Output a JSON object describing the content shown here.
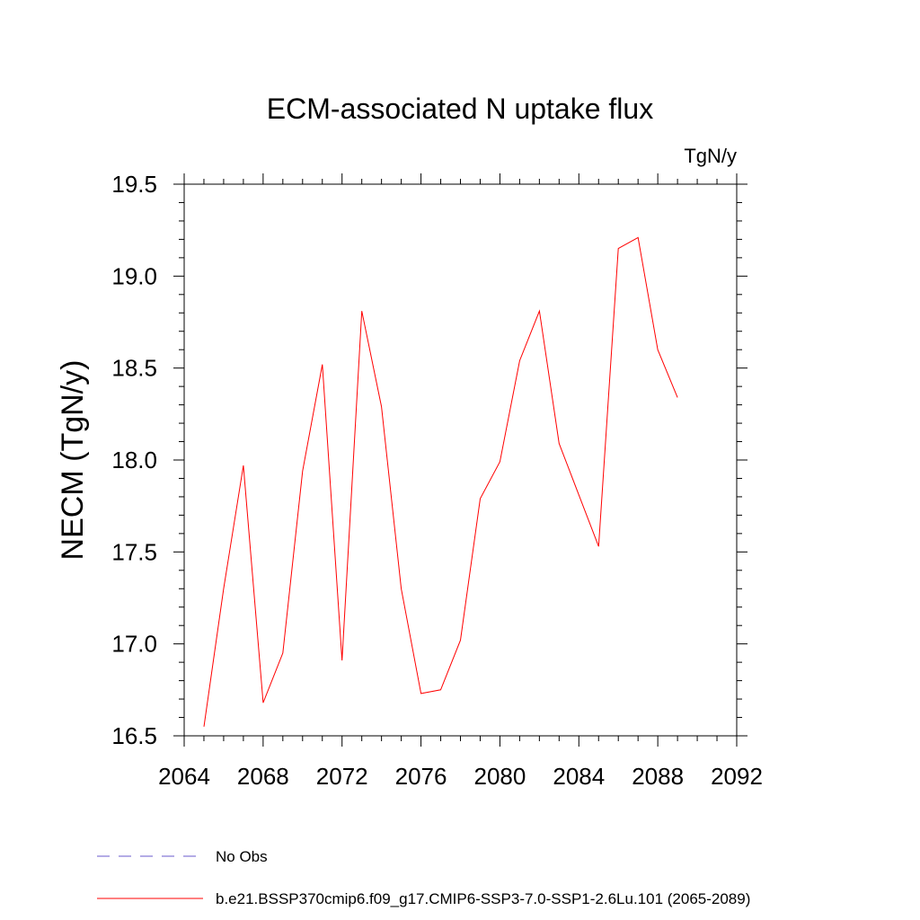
{
  "chart_data": {
    "type": "line",
    "title": "ECM-associated N uptake flux",
    "units": "TgN/y",
    "ylabel": "NECM  (TgN/y)",
    "xlabel": "",
    "xlim": [
      2064,
      2092
    ],
    "ylim": [
      16.5,
      19.5
    ],
    "x_ticks": [
      "2064",
      "2068",
      "2072",
      "2076",
      "2080",
      "2084",
      "2088",
      "2092"
    ],
    "y_ticks": [
      "16.5",
      "17.0",
      "17.5",
      "18.0",
      "18.5",
      "19.0",
      "19.5"
    ],
    "grid": false,
    "legend_position": "bottom",
    "series": [
      {
        "name": "No Obs",
        "color": "#6a5acd",
        "dash": "dashed",
        "x": [],
        "y": []
      },
      {
        "name": "b.e21.BSSP370cmip6.f09_g17.CMIP6-SSP3-7.0-SSP1-2.6Lu.101 (2065-2089)",
        "color": "#ff0000",
        "dash": "solid",
        "x": [
          2065,
          2066,
          2067,
          2068,
          2069,
          2070,
          2071,
          2072,
          2073,
          2074,
          2075,
          2076,
          2077,
          2078,
          2079,
          2080,
          2081,
          2082,
          2083,
          2084,
          2085,
          2086,
          2087,
          2088,
          2089
        ],
        "y": [
          16.55,
          17.3,
          17.97,
          16.68,
          16.95,
          17.94,
          18.52,
          16.91,
          18.81,
          18.29,
          17.3,
          16.73,
          16.75,
          17.02,
          17.79,
          17.99,
          18.54,
          18.81,
          18.09,
          17.81,
          17.53,
          19.15,
          19.21,
          18.6,
          18.34
        ]
      }
    ]
  }
}
